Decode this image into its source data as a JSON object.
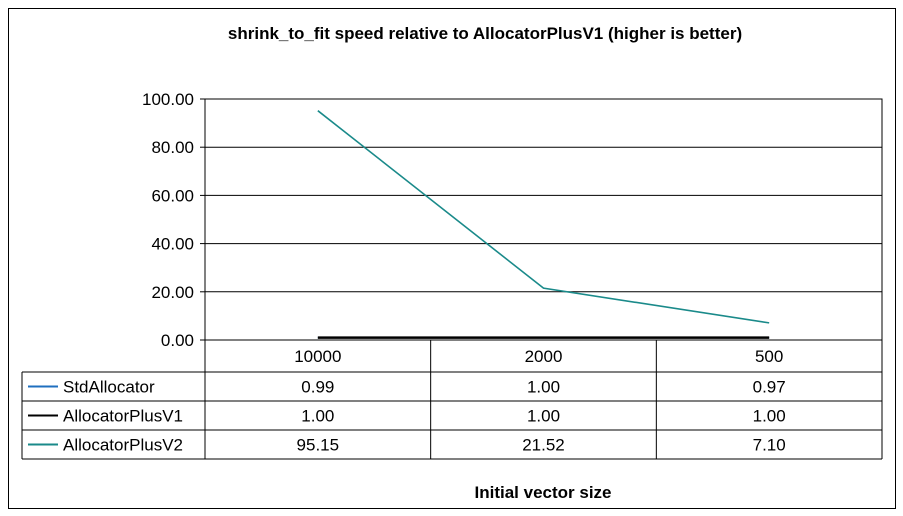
{
  "chart_data": {
    "type": "line",
    "title": "shrink_to_fit speed relative to AllocatorPlusV1 (higher is better)",
    "xlabel": "Initial vector size",
    "ylabel": "",
    "categories": [
      "10000",
      "2000",
      "500"
    ],
    "ylim": [
      0,
      100
    ],
    "yticks": [
      "100.00",
      "80.00",
      "60.00",
      "40.00",
      "20.00",
      "0.00"
    ],
    "grid": true,
    "legend": "data-table",
    "series": [
      {
        "name": "StdAllocator",
        "values": [
          0.99,
          1.0,
          0.97
        ],
        "labels": [
          "0.99",
          "1.00",
          "0.97"
        ],
        "color": "#1f6fbf"
      },
      {
        "name": "AllocatorPlusV1",
        "values": [
          1.0,
          1.0,
          1.0
        ],
        "labels": [
          "1.00",
          "1.00",
          "1.00"
        ],
        "color": "#000000"
      },
      {
        "name": "AllocatorPlusV2",
        "values": [
          95.15,
          21.52,
          7.1
        ],
        "labels": [
          "95.15",
          "21.52",
          "7.10"
        ],
        "color": "#1a8a8a"
      }
    ]
  }
}
